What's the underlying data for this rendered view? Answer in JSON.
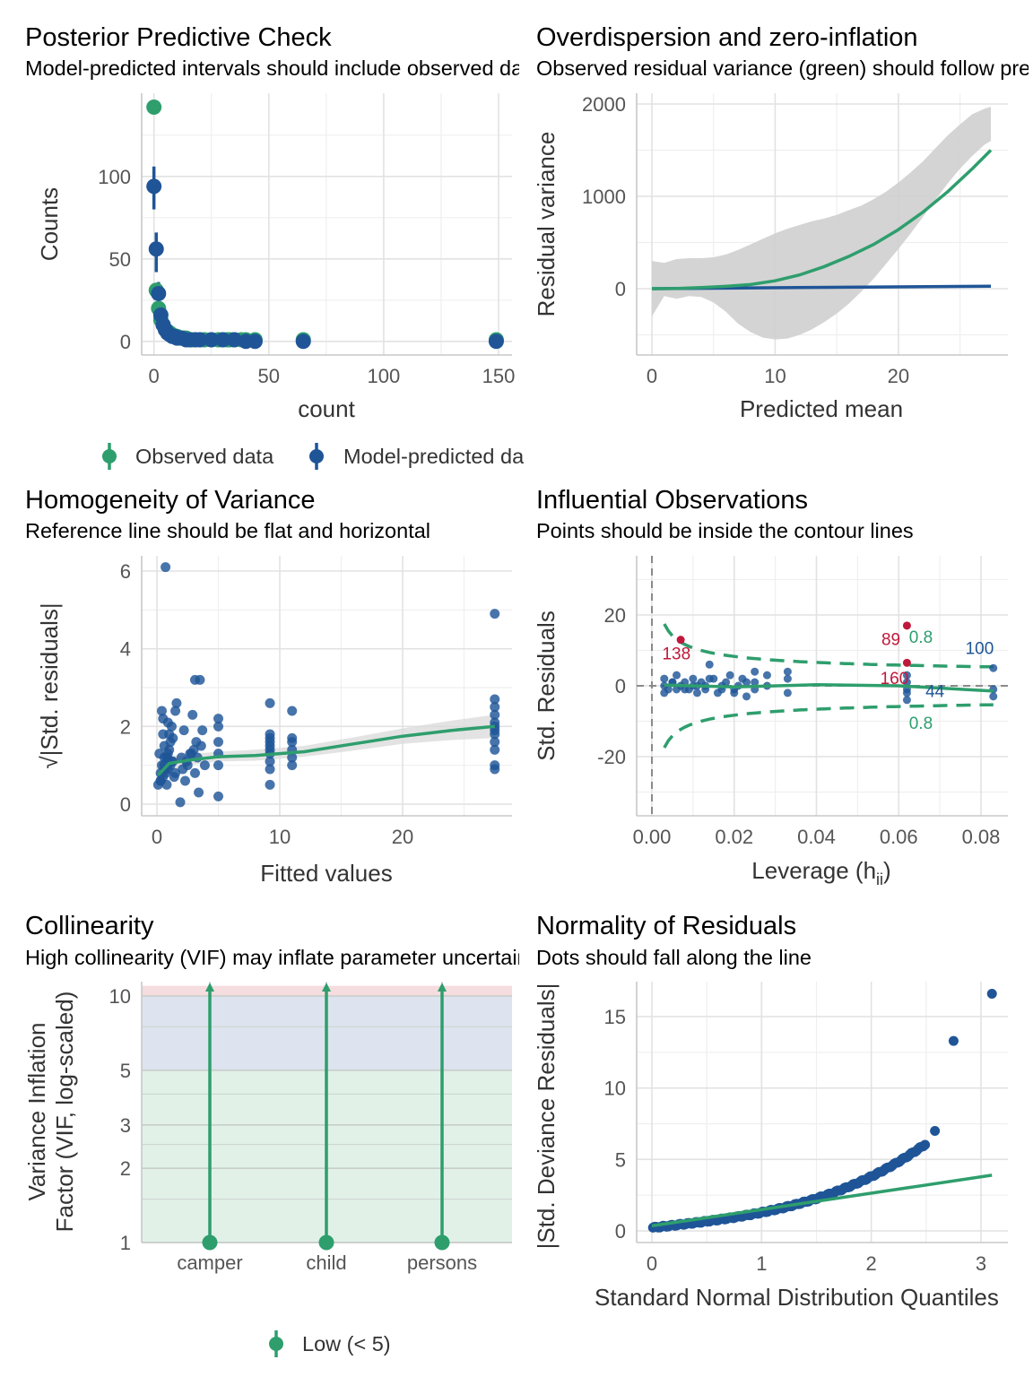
{
  "colors": {
    "green": "#2e9e6d",
    "blue": "#1f5597",
    "red": "#c0183a",
    "band": "#cfcfcf",
    "grid": "#e2e2e2"
  },
  "chart_data": [
    {
      "id": "ppc",
      "type": "scatter",
      "title": "Posterior Predictive Check",
      "subtitle": "Model-predicted intervals should include observed data points",
      "xlabel": "count",
      "ylabel": "Counts",
      "xlim": [
        -3,
        150
      ],
      "ylim": [
        -5,
        145
      ],
      "xticks": [
        0,
        50,
        100,
        150
      ],
      "yticks": [
        0,
        50,
        100
      ],
      "legend": [
        "Observed data",
        "Model-predicted data"
      ],
      "series": [
        {
          "name": "Observed data",
          "color": "green",
          "x": [
            0,
            1,
            2,
            3,
            4,
            5,
            6,
            7,
            8,
            9,
            10,
            11,
            12,
            13,
            14,
            15,
            16,
            18,
            20,
            22,
            25,
            28,
            30,
            32,
            33,
            35,
            38,
            40,
            44,
            65,
            149
          ],
          "y": [
            142,
            31,
            20,
            13,
            10,
            7,
            6,
            5,
            4,
            3,
            3,
            2,
            2,
            2,
            2,
            1,
            1,
            1,
            1,
            1,
            1,
            1,
            1,
            1,
            1,
            1,
            1,
            1,
            1,
            1,
            1
          ]
        },
        {
          "name": "Model-predicted data",
          "color": "blue",
          "x": [
            0,
            1,
            2,
            3,
            4,
            5,
            6,
            7,
            8,
            9,
            10,
            12,
            14,
            16,
            18,
            20,
            25,
            30,
            35,
            40,
            44,
            65,
            149
          ],
          "y": [
            94,
            56,
            29,
            16,
            10,
            7,
            5,
            4,
            3,
            3,
            2,
            2,
            1,
            1,
            1,
            1,
            1,
            1,
            1,
            0,
            0,
            0,
            0
          ],
          "lo": [
            80,
            42,
            18,
            8,
            4,
            3,
            2,
            1,
            1,
            1,
            0,
            0,
            0,
            0,
            0,
            0,
            0,
            0,
            0,
            0,
            0,
            0,
            0
          ],
          "hi": [
            106,
            66,
            36,
            22,
            14,
            10,
            8,
            6,
            5,
            4,
            3,
            3,
            2,
            2,
            2,
            2,
            1,
            1,
            1,
            1,
            1,
            1,
            1
          ]
        }
      ]
    },
    {
      "id": "overdisp",
      "type": "line",
      "title": "Overdispersion and zero-inflation",
      "subtitle": "Observed residual variance (green) should follow predicted residual variance (blue)",
      "xlabel": "Predicted mean",
      "ylabel": "Residual variance",
      "xlim": [
        -1,
        28.5
      ],
      "ylim": [
        -700,
        2050
      ],
      "xticks": [
        0,
        10,
        20
      ],
      "yticks": [
        0,
        1000,
        2000
      ],
      "series": [
        {
          "name": "observed",
          "color": "green",
          "x": [
            0,
            2,
            4,
            6,
            8,
            10,
            12,
            14,
            16,
            18,
            20,
            22,
            24,
            26,
            27.5
          ],
          "y": [
            0,
            2,
            12,
            25,
            45,
            85,
            150,
            240,
            350,
            480,
            640,
            830,
            1050,
            1300,
            1500
          ]
        },
        {
          "name": "predicted",
          "color": "blue",
          "x": [
            0,
            27.5
          ],
          "y": [
            0,
            27.5
          ]
        }
      ],
      "band": {
        "x": [
          0,
          1,
          2,
          3,
          4,
          5,
          6,
          7,
          8,
          9,
          10,
          11,
          12,
          13,
          14,
          15,
          16,
          17,
          18,
          19,
          20,
          21,
          22,
          23,
          24,
          25,
          26,
          27,
          27.5
        ],
        "lo": [
          -300,
          -80,
          -110,
          -80,
          -90,
          -150,
          -250,
          -380,
          -470,
          -530,
          -550,
          -540,
          -500,
          -440,
          -360,
          -270,
          -160,
          -30,
          110,
          270,
          430,
          600,
          780,
          960,
          1140,
          1300,
          1440,
          1560,
          1600
        ],
        "hi": [
          300,
          280,
          320,
          330,
          330,
          340,
          370,
          420,
          480,
          540,
          600,
          650,
          690,
          730,
          760,
          800,
          850,
          900,
          970,
          1050,
          1150,
          1260,
          1380,
          1520,
          1660,
          1780,
          1890,
          1950,
          1970
        ]
      }
    },
    {
      "id": "homog",
      "type": "scatter",
      "title": "Homogeneity of Variance",
      "subtitle": "Reference line should be flat and horizontal",
      "xlabel": "Fitted values",
      "ylabel": "√|Std. residuals|",
      "xlim": [
        -1,
        29
      ],
      "ylim": [
        -0.25,
        6.35
      ],
      "xticks": [
        0,
        10,
        20
      ],
      "yticks": [
        0,
        2,
        4,
        6
      ],
      "points": {
        "x": [
          0.1,
          0.2,
          0.3,
          0.4,
          0.5,
          0.6,
          0.7,
          0.8,
          0.9,
          1.0,
          1.1,
          1.2,
          1.3,
          1.4,
          1.5,
          1.6,
          0.3,
          0.5,
          0.7,
          0.9,
          1.1,
          1.3,
          0.4,
          0.6,
          0.8,
          1.0,
          1.5,
          1.2,
          0.9,
          0.7,
          2.0,
          2.2,
          2.5,
          2.8,
          3.0,
          3.2,
          3.5,
          3.7,
          3.9,
          2.1,
          2.4,
          2.7,
          3.1,
          3.3,
          3.6,
          2.3,
          2.9,
          3.4,
          5.0,
          5.0,
          5.0,
          5.0,
          5.0,
          5.0,
          9.2,
          9.2,
          9.2,
          9.2,
          9.2,
          9.2,
          9.2,
          9.2,
          9.2,
          9.2,
          11.0,
          11.0,
          11.0,
          11.0,
          11.0,
          11.0,
          27.5,
          27.5,
          27.5,
          27.5,
          27.5,
          27.5,
          27.5,
          27.5,
          27.5,
          27.5,
          27.5,
          27.5,
          0.5,
          0.8,
          3.1,
          1.9,
          0.3,
          0.6
        ],
        "y": [
          0.5,
          1.3,
          0.8,
          1.0,
          2.2,
          1.5,
          6.1,
          1.2,
          0.9,
          1.4,
          1.6,
          2.0,
          1.1,
          0.7,
          2.4,
          2.6,
          0.6,
          1.8,
          0.9,
          1.3,
          1.0,
          1.7,
          2.4,
          1.2,
          0.5,
          1.8,
          0.8,
          1.1,
          2.1,
          0.8,
          1.2,
          1.9,
          1.0,
          1.3,
          1.4,
          1.6,
          3.2,
          1.9,
          1.0,
          0.9,
          1.1,
          1.3,
          0.8,
          1.2,
          1.5,
          0.6,
          2.3,
          0.3,
          0.2,
          1.0,
          1.3,
          1.6,
          2.0,
          2.2,
          0.5,
          0.9,
          1.1,
          1.3,
          1.4,
          1.5,
          1.6,
          1.7,
          1.8,
          2.6,
          1.0,
          1.2,
          1.4,
          1.6,
          1.7,
          2.4,
          4.9,
          2.7,
          2.3,
          2.1,
          2.0,
          1.9,
          1.8,
          1.6,
          1.4,
          1.0,
          0.9,
          2.5,
          0.7,
          1.2,
          3.2,
          0.05,
          0.6,
          1.0
        ]
      },
      "smooth": {
        "x": [
          0.1,
          1,
          2,
          3,
          5,
          8,
          12,
          16,
          20,
          24,
          27.5
        ],
        "y": [
          0.75,
          1.05,
          1.1,
          1.15,
          1.22,
          1.25,
          1.35,
          1.55,
          1.75,
          1.9,
          2.0
        ],
        "lo": [
          0.45,
          0.85,
          0.95,
          1.02,
          1.1,
          1.12,
          1.22,
          1.38,
          1.55,
          1.65,
          1.7
        ],
        "hi": [
          1.05,
          1.25,
          1.25,
          1.3,
          1.35,
          1.4,
          1.5,
          1.72,
          1.95,
          2.15,
          2.3
        ]
      }
    },
    {
      "id": "influence",
      "type": "scatter",
      "title": "Influential Observations",
      "subtitle": "Points should be inside the contour lines",
      "xlabel": "Leverage (hii)",
      "xlabel_main": "Leverage (h",
      "xlabel_sub": "ii",
      "xlabel_tail": ")",
      "ylabel": "Std. Residuals",
      "xlim": [
        -0.005,
        0.085
      ],
      "ylim": [
        -36,
        36
      ],
      "xticks": [
        0.0,
        0.02,
        0.04,
        0.06,
        0.08
      ],
      "xticklabels": [
        "0.00",
        "0.02",
        "0.04",
        "0.06",
        "0.08"
      ],
      "yticks": [
        -20,
        0,
        20
      ],
      "points": {
        "x": [
          0.003,
          0.003,
          0.004,
          0.005,
          0.006,
          0.006,
          0.007,
          0.008,
          0.009,
          0.01,
          0.01,
          0.011,
          0.012,
          0.013,
          0.013,
          0.014,
          0.015,
          0.016,
          0.017,
          0.018,
          0.019,
          0.02,
          0.021,
          0.022,
          0.023,
          0.025,
          0.025,
          0.025,
          0.028,
          0.028,
          0.033,
          0.033,
          0.033,
          0.062,
          0.062,
          0.062,
          0.062,
          0.062,
          0.083,
          0.083,
          0.083,
          0.003,
          0.005,
          0.008,
          0.011,
          0.014,
          0.017,
          0.02,
          0.023
        ],
        "y": [
          2,
          0,
          -1,
          1,
          -1,
          3,
          0,
          1,
          -1,
          2,
          0,
          -2,
          1,
          0,
          -1,
          6,
          2,
          -2,
          0,
          1,
          3,
          -1,
          0,
          2,
          -3,
          4,
          -1,
          1,
          0,
          3,
          -2,
          2,
          4,
          3,
          -1,
          -2,
          -4,
          1,
          5,
          -1,
          -3,
          -2,
          1,
          -1,
          0,
          2,
          -1,
          -2,
          1
        ],
        "flagged": {
          "x": [
            0.007,
            0.062,
            0.062
          ],
          "y": [
            13,
            17,
            6.5
          ]
        }
      },
      "labels": [
        {
          "text": "138",
          "x": 0.0025,
          "y": 7.5,
          "color": "red"
        },
        {
          "text": "89",
          "x": 0.0558,
          "y": 11.5,
          "color": "red"
        },
        {
          "text": "160",
          "x": 0.0555,
          "y": 0.5,
          "color": "red"
        },
        {
          "text": "100",
          "x": 0.0762,
          "y": 9,
          "color": "blue"
        },
        {
          "text": "44",
          "x": 0.0665,
          "y": -3.2,
          "color": "blue"
        },
        {
          "text": "0.8",
          "x": 0.0625,
          "y": 12.2,
          "color": "green"
        },
        {
          "text": "0.8",
          "x": 0.0625,
          "y": -12.2,
          "color": "green"
        }
      ],
      "smooth": {
        "x": [
          0.003,
          0.02,
          0.04,
          0.06,
          0.083
        ],
        "y": [
          0.2,
          -0.3,
          0.3,
          0.0,
          -1.5
        ]
      }
    },
    {
      "id": "vif",
      "type": "bar",
      "title": "Collinearity",
      "subtitle": "High collinearity (VIF) may inflate parameter uncertainty",
      "xlabel": "",
      "ylabel": "Variance Inflation Factor (VIF, log-scaled)",
      "ylabel_lines": [
        "Variance Inflation",
        "Factor (VIF, log-scaled)"
      ],
      "log_scale": true,
      "ylim": [
        1,
        11
      ],
      "yticks": [
        1,
        2,
        3,
        5,
        10
      ],
      "categories": [
        "camper",
        "child",
        "persons"
      ],
      "values": [
        1,
        1,
        1
      ],
      "zones": [
        {
          "from": 1,
          "to": 5,
          "color": "#e1f1e8"
        },
        {
          "from": 5,
          "to": 10,
          "color": "#dde4ef"
        },
        {
          "from": 10,
          "to": 11,
          "color": "#f5dcdf"
        }
      ],
      "legend": [
        "Low (< 5)"
      ]
    },
    {
      "id": "qq",
      "type": "scatter",
      "title": "Normality of Residuals",
      "subtitle": "Dots should fall along the line",
      "xlabel": "Standard Normal Distribution Quantiles",
      "ylabel": "|Std. Deviance Residuals|",
      "xlim": [
        -0.1,
        3.25
      ],
      "ylim": [
        -0.8,
        17.5
      ],
      "xticks": [
        0,
        1,
        2,
        3
      ],
      "yticks": [
        0,
        5,
        10,
        15
      ],
      "ref_line": {
        "x": [
          0,
          3.1
        ],
        "y": [
          0.35,
          3.9
        ]
      },
      "outliers": {
        "x": [
          2.58,
          2.75,
          3.1
        ],
        "y": [
          7.0,
          13.3,
          16.6
        ]
      }
    }
  ]
}
